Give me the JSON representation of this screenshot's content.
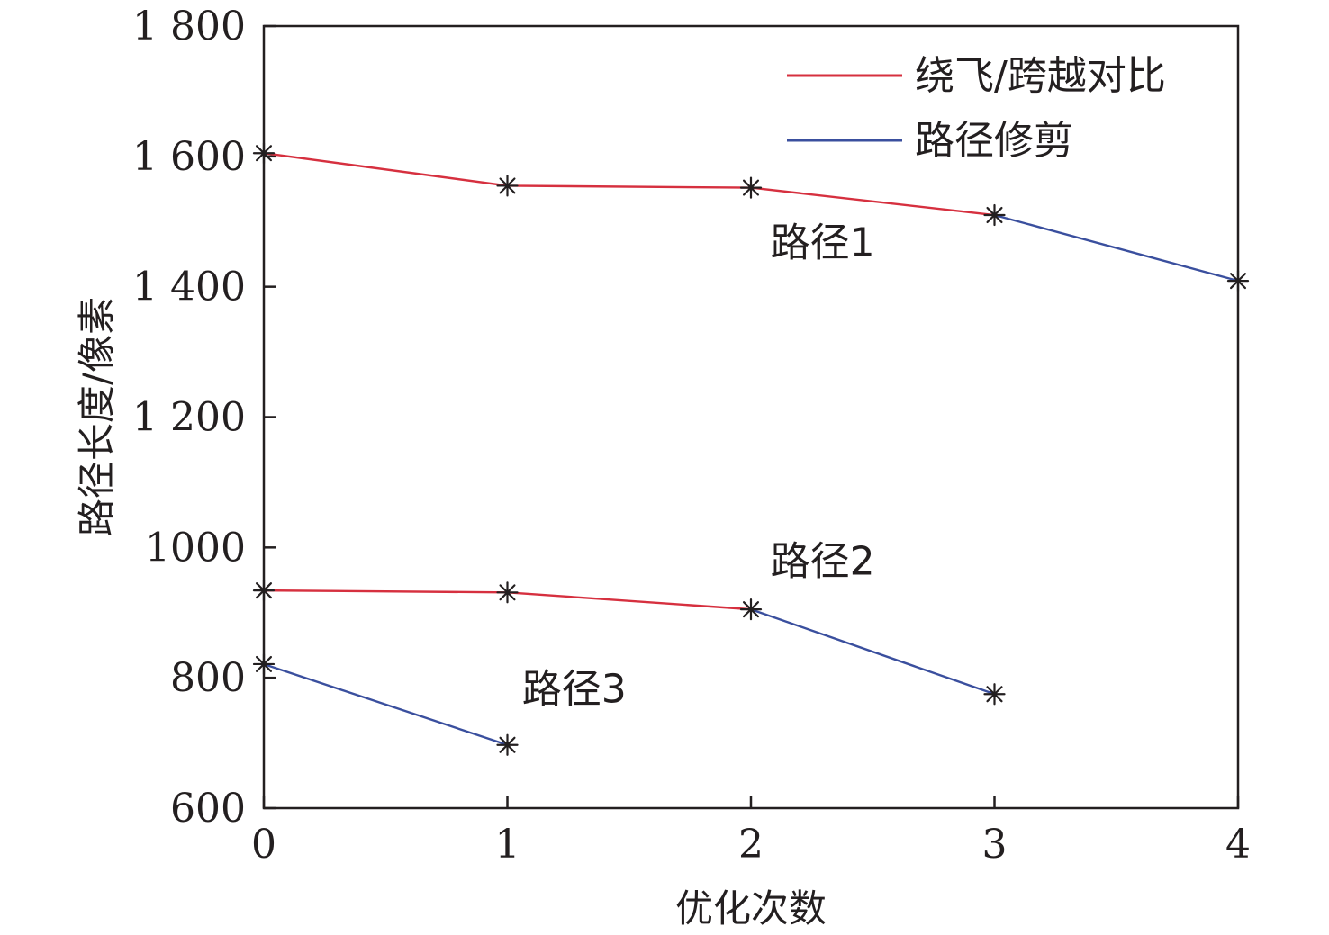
{
  "chart_data": {
    "type": "line",
    "title": "",
    "xlabel": "优化次数",
    "ylabel": "路径长度/像素",
    "xlim": [
      0,
      4
    ],
    "ylim": [
      600,
      1800
    ],
    "x_ticks": [
      0,
      1,
      2,
      3,
      4
    ],
    "x_tick_labels": [
      "0",
      "1",
      "2",
      "3",
      "4"
    ],
    "y_ticks": [
      600,
      800,
      1000,
      1200,
      1400,
      1600,
      1800
    ],
    "y_tick_labels": [
      "600",
      "800",
      "1000",
      "1 200",
      "1 400",
      "1 600",
      "1 800"
    ],
    "grid": false,
    "legend_position": "top-right",
    "legend": [
      {
        "name": "绕飞/跨越对比",
        "color": "#d6303f"
      },
      {
        "name": "路径修剪",
        "color": "#3a4f9e"
      }
    ],
    "marker": "*",
    "paths": [
      {
        "label": "路径1",
        "segments": [
          {
            "method": "绕飞/跨越对比",
            "x": [
              0,
              1,
              2,
              3
            ],
            "y": [
              1605,
              1555,
              1552,
              1510
            ]
          },
          {
            "method": "路径修剪",
            "x": [
              3,
              4
            ],
            "y": [
              1510,
              1409
            ]
          }
        ],
        "label_at": {
          "x": 2.08,
          "y": 1447
        }
      },
      {
        "label": "路径2",
        "segments": [
          {
            "method": "绕飞/跨越对比",
            "x": [
              0,
              1,
              2
            ],
            "y": [
              934,
              931,
              905
            ]
          },
          {
            "method": "路径修剪",
            "x": [
              2,
              3
            ],
            "y": [
              905,
              775
            ]
          }
        ],
        "label_at": {
          "x": 2.08,
          "y": 958
        }
      },
      {
        "label": "路径3",
        "segments": [
          {
            "method": "路径修剪",
            "x": [
              0,
              1
            ],
            "y": [
              821,
              697
            ]
          }
        ],
        "label_at": {
          "x": 1.06,
          "y": 762
        }
      }
    ]
  }
}
